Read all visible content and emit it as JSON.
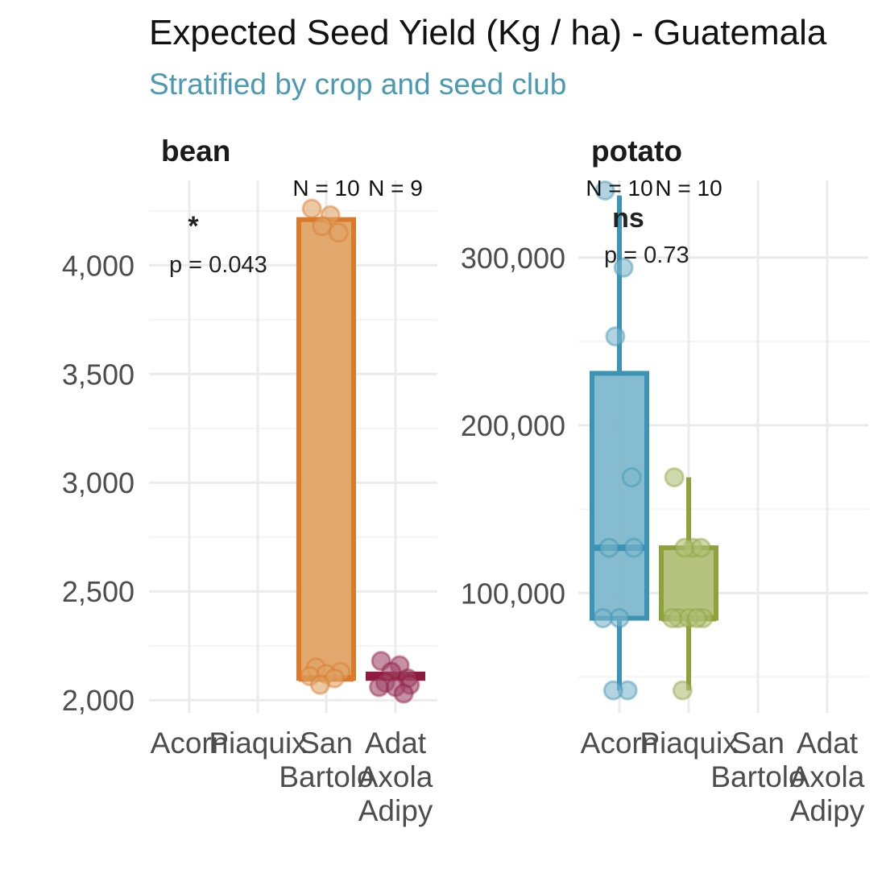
{
  "colors": {
    "subtitle": "#4a9ab3",
    "grid": "#ebebeb",
    "grid_minor": "#f4f4f4"
  },
  "chart_data": {
    "type": "box",
    "title": "Expected Seed Yield (Kg / ha) - Guatemala",
    "subtitle": "Stratified by crop and seed club",
    "categories": [
      "Acorn",
      "Piaquix",
      "San Bartolo",
      "Adat Axola Adipy"
    ],
    "category_labels": [
      [
        "Acorn"
      ],
      [
        "Piaquix"
      ],
      [
        "San",
        "Bartolo"
      ],
      [
        "Adat",
        "Axola",
        "Adipy"
      ]
    ],
    "grid": true,
    "legend": "none",
    "panels": [
      {
        "name": "bean",
        "ylim": [
          1960,
          4390
        ],
        "yticks": [
          2000,
          2500,
          3000,
          3500,
          4000
        ],
        "ytick_labels": [
          "2,000",
          "2,500",
          "3,000",
          "3,500",
          "4,000"
        ],
        "significance": "*",
        "p_label": "p = 0.043",
        "groups": [
          {
            "category": "San Bartolo",
            "n_label": "N = 10",
            "color": "#d97b2b",
            "fill": "#e0a466",
            "box": {
              "whisker_low": 2100,
              "q1": 2100,
              "median": 2100,
              "q3": 4210,
              "whisker_high": 4210
            },
            "points": [
              4260,
              4230,
              4180,
              4150,
              2150,
              2130,
              2120,
              2110,
              2100,
              2070
            ]
          },
          {
            "category": "Adat Axola Adipy",
            "n_label": "N = 9",
            "color": "#8f1b3e",
            "fill": "#a0476a",
            "box": {
              "whisker_low": 2100,
              "q1": 2100,
              "median": 2110,
              "q3": 2120,
              "whisker_high": 2120
            },
            "points": [
              2180,
              2160,
              2130,
              2100,
              2080,
              2070,
              2060,
              2060,
              2030
            ]
          }
        ]
      },
      {
        "name": "potato",
        "ylim": [
          31000,
          346000
        ],
        "yticks": [
          100000,
          200000,
          300000
        ],
        "ytick_labels": [
          "100,000",
          "200,000",
          "300,000"
        ],
        "significance": "ns",
        "p_label": "p = 0.73",
        "groups": [
          {
            "category": "Acorn",
            "n_label": "N = 10",
            "color": "#3d93b3",
            "fill": "#7fb8cc",
            "box": {
              "whisker_low": 42000,
              "q1": 85000,
              "median": 127000,
              "q3": 231000,
              "whisker_high": 337000
            },
            "points": [
              340000,
              294000,
              253000,
              169000,
              127000,
              127000,
              85000,
              85000,
              42000,
              42000
            ]
          },
          {
            "category": "Piaquix",
            "n_label": "N = 10",
            "color": "#8ea13d",
            "fill": "#b1c078",
            "box": {
              "whisker_low": 42000,
              "q1": 85000,
              "median": 85000,
              "q3": 127000,
              "whisker_high": 169000
            },
            "points": [
              169000,
              127000,
              127000,
              127000,
              85000,
              85000,
              85000,
              85000,
              85000,
              42000
            ]
          }
        ]
      }
    ]
  }
}
